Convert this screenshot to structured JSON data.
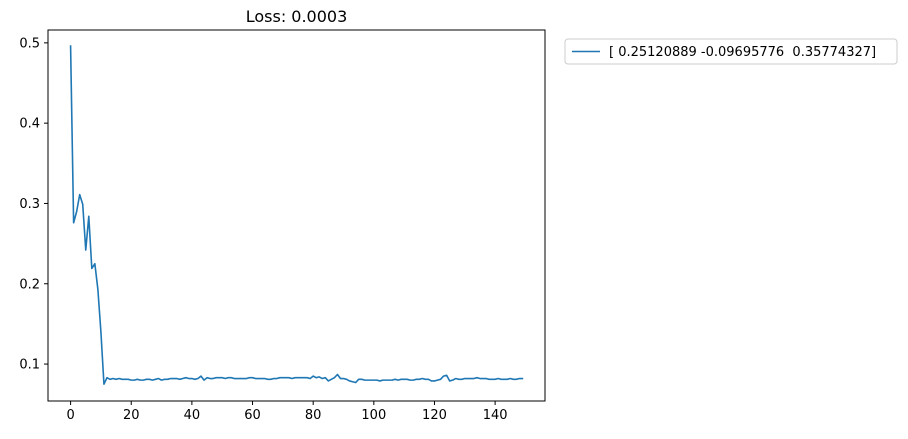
{
  "chart_data": {
    "type": "line",
    "title": "Loss: 0.0003",
    "xlabel": "",
    "ylabel": "",
    "xlim": [
      -7.45,
      156.45
    ],
    "ylim": [
      0.054,
      0.516
    ],
    "xticks": [
      0,
      20,
      40,
      60,
      80,
      100,
      120,
      140
    ],
    "yticks": [
      0.1,
      0.2,
      0.3,
      0.4,
      0.5
    ],
    "grid": false,
    "legend_position": "outside-top-right",
    "series": [
      {
        "name": "[ 0.25120889 -0.09695776  0.35774327]",
        "color": "#1f77b4",
        "x": [
          0,
          1,
          2,
          3,
          4,
          5,
          6,
          7,
          8,
          9,
          10,
          11,
          12,
          13,
          14,
          15,
          16,
          17,
          18,
          19,
          20,
          21,
          22,
          23,
          24,
          25,
          26,
          27,
          28,
          29,
          30,
          31,
          32,
          33,
          34,
          35,
          36,
          37,
          38,
          39,
          40,
          41,
          42,
          43,
          44,
          45,
          46,
          47,
          48,
          49,
          50,
          51,
          52,
          53,
          54,
          55,
          56,
          57,
          58,
          59,
          60,
          61,
          62,
          63,
          64,
          65,
          66,
          67,
          68,
          69,
          70,
          71,
          72,
          73,
          74,
          75,
          76,
          77,
          78,
          79,
          80,
          81,
          82,
          83,
          84,
          85,
          86,
          87,
          88,
          89,
          90,
          91,
          92,
          93,
          94,
          95,
          96,
          97,
          98,
          99,
          100,
          101,
          102,
          103,
          104,
          105,
          106,
          107,
          108,
          109,
          110,
          111,
          112,
          113,
          114,
          115,
          116,
          117,
          118,
          119,
          120,
          121,
          122,
          123,
          124,
          125,
          126,
          127,
          128,
          129,
          130,
          131,
          132,
          133,
          134,
          135,
          136,
          137,
          138,
          139,
          140,
          141,
          142,
          143,
          144,
          145,
          146,
          147,
          148,
          149
        ],
        "y": [
          0.496,
          0.276,
          0.29,
          0.311,
          0.299,
          0.242,
          0.284,
          0.219,
          0.225,
          0.193,
          0.14,
          0.075,
          0.083,
          0.081,
          0.082,
          0.081,
          0.082,
          0.081,
          0.081,
          0.081,
          0.08,
          0.08,
          0.081,
          0.08,
          0.08,
          0.081,
          0.081,
          0.08,
          0.081,
          0.082,
          0.08,
          0.081,
          0.081,
          0.082,
          0.082,
          0.082,
          0.081,
          0.082,
          0.083,
          0.082,
          0.082,
          0.081,
          0.082,
          0.085,
          0.08,
          0.083,
          0.082,
          0.082,
          0.083,
          0.083,
          0.083,
          0.082,
          0.083,
          0.083,
          0.082,
          0.082,
          0.082,
          0.082,
          0.082,
          0.083,
          0.083,
          0.082,
          0.082,
          0.082,
          0.082,
          0.081,
          0.081,
          0.082,
          0.082,
          0.083,
          0.083,
          0.083,
          0.083,
          0.082,
          0.083,
          0.083,
          0.083,
          0.083,
          0.083,
          0.082,
          0.085,
          0.083,
          0.084,
          0.082,
          0.083,
          0.079,
          0.081,
          0.083,
          0.087,
          0.082,
          0.082,
          0.081,
          0.079,
          0.078,
          0.077,
          0.081,
          0.081,
          0.08,
          0.08,
          0.08,
          0.08,
          0.08,
          0.079,
          0.08,
          0.08,
          0.08,
          0.08,
          0.081,
          0.08,
          0.081,
          0.081,
          0.081,
          0.08,
          0.08,
          0.081,
          0.081,
          0.082,
          0.081,
          0.081,
          0.079,
          0.079,
          0.08,
          0.081,
          0.085,
          0.086,
          0.079,
          0.08,
          0.082,
          0.081,
          0.081,
          0.082,
          0.082,
          0.082,
          0.082,
          0.083,
          0.082,
          0.082,
          0.082,
          0.081,
          0.081,
          0.081,
          0.082,
          0.081,
          0.081,
          0.081,
          0.082,
          0.081,
          0.081,
          0.082,
          0.082
        ]
      }
    ]
  }
}
